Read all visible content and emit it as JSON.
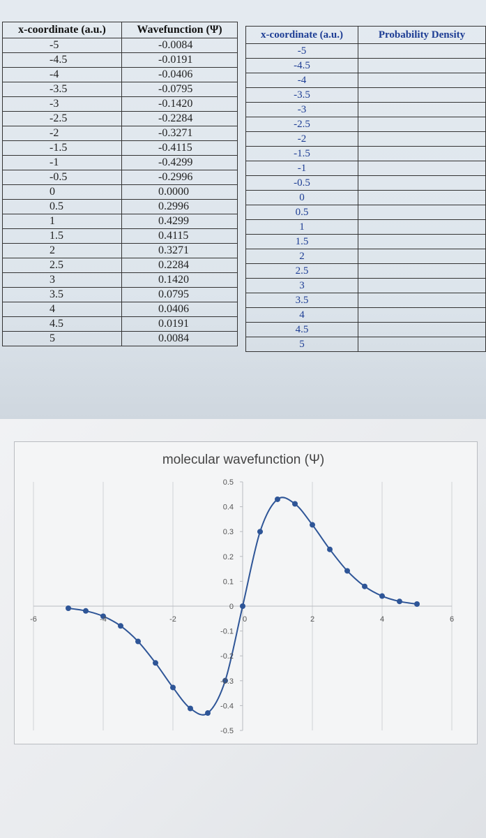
{
  "table1": {
    "headers": [
      "x-coordinate (a.u.)",
      "Wavefunction (Ψ)"
    ],
    "rows": [
      [
        "-5",
        "-0.0084"
      ],
      [
        "-4.5",
        "-0.0191"
      ],
      [
        "-4",
        "-0.0406"
      ],
      [
        "-3.5",
        "-0.0795"
      ],
      [
        "-3",
        "-0.1420"
      ],
      [
        "-2.5",
        "-0.2284"
      ],
      [
        "-2",
        "-0.3271"
      ],
      [
        "-1.5",
        "-0.4115"
      ],
      [
        "-1",
        "-0.4299"
      ],
      [
        "-0.5",
        "-0.2996"
      ],
      [
        "0",
        "0.0000"
      ],
      [
        "0.5",
        "0.2996"
      ],
      [
        "1",
        "0.4299"
      ],
      [
        "1.5",
        "0.4115"
      ],
      [
        "2",
        "0.3271"
      ],
      [
        "2.5",
        "0.2284"
      ],
      [
        "3",
        "0.1420"
      ],
      [
        "3.5",
        "0.0795"
      ],
      [
        "4",
        "0.0406"
      ],
      [
        "4.5",
        "0.0191"
      ],
      [
        "5",
        "0.0084"
      ]
    ]
  },
  "table2": {
    "headers": [
      "x-coordinate (a.u.)",
      "Probability Density"
    ],
    "rows": [
      "-5",
      "-4.5",
      "-4",
      "-3.5",
      "-3",
      "-2.5",
      "-2",
      "-1.5",
      "-1",
      "-0.5",
      "0",
      "0.5",
      "1",
      "1.5",
      "2",
      "2.5",
      "3",
      "3.5",
      "4",
      "4.5",
      "5"
    ]
  },
  "chart_data": {
    "type": "scatter",
    "title": "molecular wavefunction (Ψ)",
    "xlim": [
      -6,
      6
    ],
    "ylim": [
      -0.5,
      0.5
    ],
    "x_ticks": [
      "-6",
      "-4",
      "-2",
      "0",
      "2",
      "4",
      "6"
    ],
    "y_ticks": [
      "0.5",
      "0.4",
      "0.3",
      "0.2",
      "0.1",
      "0",
      "-0.1",
      "-0.2",
      "-0.3",
      "-0.4",
      "-0.5"
    ],
    "grid": "vertical",
    "series": [
      {
        "color": "#2e5597",
        "x": [
          -5,
          -4.5,
          -4,
          -3.5,
          -3,
          -2.5,
          -2,
          -1.5,
          -1,
          -0.5,
          0,
          0.5,
          1,
          1.5,
          2,
          2.5,
          3,
          3.5,
          4,
          4.5,
          5
        ],
        "y": [
          -0.0084,
          -0.0191,
          -0.0406,
          -0.0795,
          -0.142,
          -0.2284,
          -0.3271,
          -0.4115,
          -0.4299,
          -0.2996,
          0,
          0.2996,
          0.4299,
          0.4115,
          0.3271,
          0.2284,
          0.142,
          0.0795,
          0.0406,
          0.0191,
          0.0084
        ]
      }
    ]
  }
}
